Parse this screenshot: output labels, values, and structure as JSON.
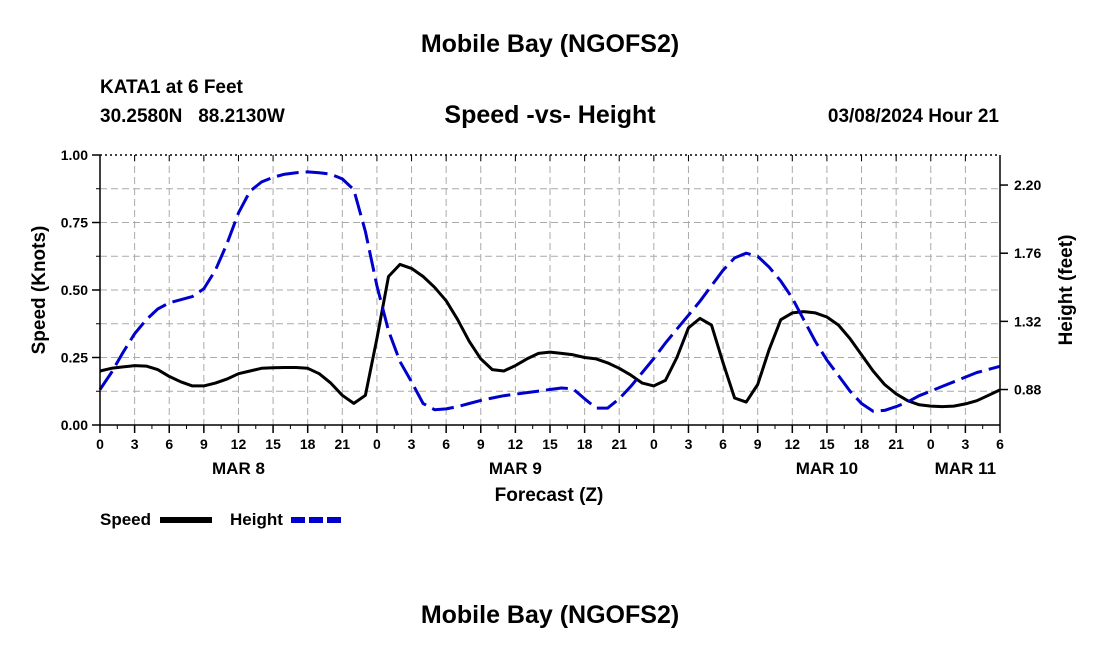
{
  "page": {
    "main_title": "Mobile Bay (NGOFS2)",
    "station_line1": "KATA1 at 6 Feet",
    "station_line2": "30.2580N   88.2130W",
    "subtitle": "Speed -vs- Height",
    "timestamp": "03/08/2024 Hour 21",
    "footer_title": "Mobile Bay (NGOFS2)"
  },
  "legend": {
    "speed_label": "Speed",
    "height_label": "Height"
  },
  "colors": {
    "speed": "#000000",
    "height": "#0000cc",
    "grid": "#aaaaaa"
  },
  "chart_data": {
    "type": "line",
    "title": "Speed -vs- Height",
    "xlabel": "Forecast (Z)",
    "ylabel_left": "Speed (Knots)",
    "ylabel_right": "Height (feet)",
    "x_range_hours": [
      0,
      78
    ],
    "ylim_left": [
      0,
      1
    ],
    "ylim_right": [
      0.651,
      2.394
    ],
    "y_ticks_left": [
      "0.00",
      "0.25",
      "0.50",
      "0.75",
      "1.00"
    ],
    "y_ticks_right": [
      "0.88",
      "1.32",
      "1.76",
      "2.20"
    ],
    "y_ticks_right_values": [
      0.88,
      1.32,
      1.76,
      2.2
    ],
    "x_tick_labels": [
      "0",
      "3",
      "6",
      "9",
      "12",
      "15",
      "18",
      "21",
      "0",
      "3",
      "6",
      "9",
      "12",
      "15",
      "18",
      "21",
      "0",
      "3",
      "6",
      "9",
      "12",
      "15",
      "18",
      "21",
      "0",
      "3",
      "6"
    ],
    "day_labels": [
      {
        "label": "MAR 8",
        "hour": 12
      },
      {
        "label": "MAR 9",
        "hour": 36
      },
      {
        "label": "MAR 10",
        "hour": 63
      },
      {
        "label": "MAR 11",
        "hour": 75
      }
    ],
    "grid": true,
    "series": [
      {
        "name": "Speed",
        "axis": "left",
        "style": "solid",
        "x": [
          0,
          1,
          2,
          3,
          4,
          5,
          6,
          7,
          8,
          9,
          10,
          11,
          12,
          13,
          14,
          15,
          16,
          17,
          18,
          19,
          20,
          21,
          22,
          23,
          24,
          25,
          26,
          27,
          28,
          29,
          30,
          31,
          32,
          33,
          34,
          35,
          36,
          37,
          38,
          39,
          40,
          41,
          42,
          43,
          44,
          45,
          46,
          47,
          48,
          49,
          50,
          51,
          52,
          53,
          54,
          55,
          56,
          57,
          58,
          59,
          60,
          61,
          62,
          63,
          64,
          65,
          66,
          67,
          68,
          69,
          70,
          71,
          72,
          73,
          74,
          75,
          76,
          77,
          78
        ],
        "values": [
          0.2,
          0.21,
          0.215,
          0.22,
          0.218,
          0.205,
          0.18,
          0.16,
          0.145,
          0.145,
          0.155,
          0.17,
          0.19,
          0.2,
          0.21,
          0.212,
          0.213,
          0.213,
          0.21,
          0.19,
          0.155,
          0.11,
          0.08,
          0.11,
          0.32,
          0.55,
          0.595,
          0.58,
          0.55,
          0.51,
          0.46,
          0.39,
          0.31,
          0.245,
          0.205,
          0.2,
          0.22,
          0.245,
          0.265,
          0.27,
          0.265,
          0.26,
          0.25,
          0.245,
          0.23,
          0.21,
          0.185,
          0.155,
          0.145,
          0.165,
          0.25,
          0.36,
          0.395,
          0.37,
          0.23,
          0.1,
          0.085,
          0.15,
          0.28,
          0.39,
          0.415,
          0.42,
          0.415,
          0.4,
          0.37,
          0.32,
          0.26,
          0.2,
          0.15,
          0.115,
          0.09,
          0.075,
          0.07,
          0.068,
          0.07,
          0.078,
          0.09,
          0.11,
          0.13
        ]
      },
      {
        "name": "Height",
        "axis": "right",
        "style": "dashed",
        "x": [
          0,
          1,
          2,
          3,
          4,
          5,
          6,
          7,
          8,
          9,
          10,
          11,
          12,
          13,
          14,
          15,
          16,
          17,
          18,
          19,
          20,
          21,
          22,
          23,
          24,
          25,
          26,
          27,
          28,
          29,
          30,
          31,
          32,
          33,
          34,
          35,
          36,
          37,
          38,
          39,
          40,
          41,
          42,
          43,
          44,
          45,
          46,
          47,
          48,
          49,
          50,
          51,
          52,
          53,
          54,
          55,
          56,
          57,
          58,
          59,
          60,
          61,
          62,
          63,
          64,
          65,
          66,
          67,
          68,
          69,
          70,
          71,
          72,
          73,
          74,
          75,
          76,
          77,
          78
        ],
        "values": [
          0.88,
          0.99,
          1.12,
          1.24,
          1.33,
          1.4,
          1.44,
          1.46,
          1.48,
          1.53,
          1.65,
          1.82,
          2.02,
          2.16,
          2.22,
          2.25,
          2.27,
          2.28,
          2.285,
          2.28,
          2.27,
          2.24,
          2.17,
          1.9,
          1.55,
          1.26,
          1.06,
          0.93,
          0.79,
          0.75,
          0.755,
          0.77,
          0.79,
          0.81,
          0.825,
          0.84,
          0.85,
          0.86,
          0.87,
          0.88,
          0.89,
          0.885,
          0.82,
          0.76,
          0.76,
          0.82,
          0.9,
          0.99,
          1.08,
          1.18,
          1.27,
          1.36,
          1.45,
          1.55,
          1.65,
          1.73,
          1.76,
          1.74,
          1.67,
          1.58,
          1.47,
          1.33,
          1.19,
          1.07,
          0.97,
          0.87,
          0.79,
          0.74,
          0.745,
          0.77,
          0.8,
          0.84,
          0.87,
          0.9,
          0.93,
          0.96,
          0.99,
          1.01,
          1.03
        ]
      }
    ]
  }
}
